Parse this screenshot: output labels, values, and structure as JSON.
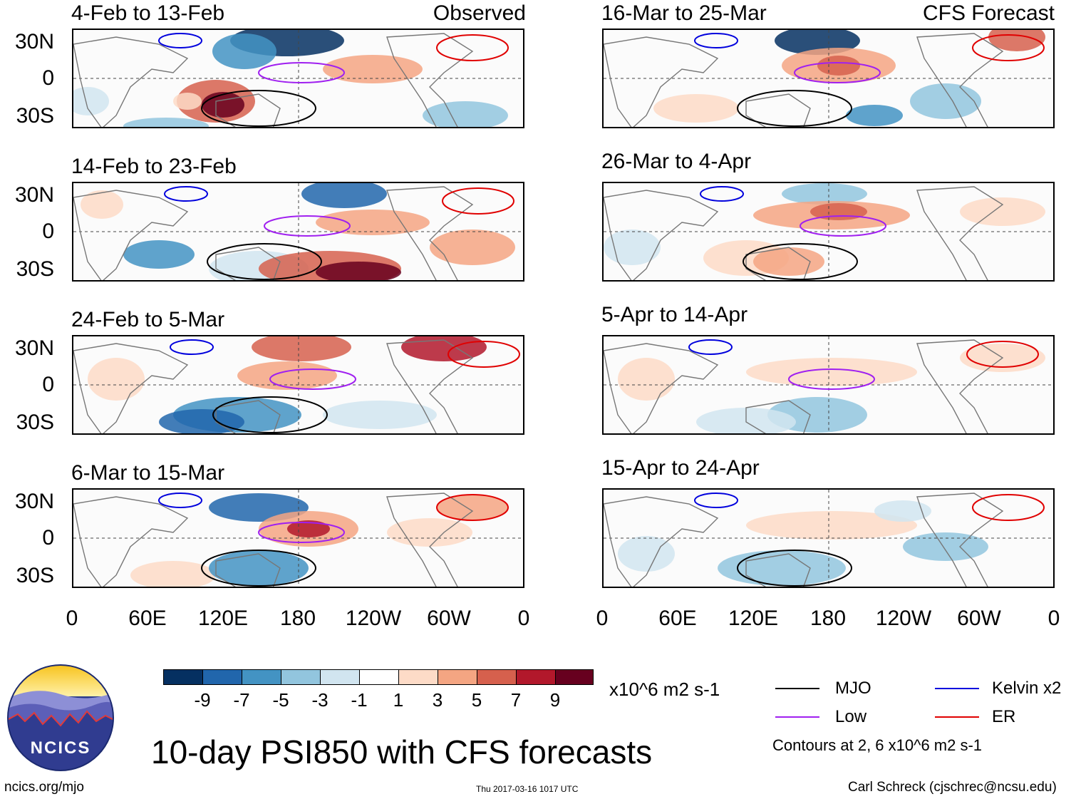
{
  "header": {
    "observed_label": "Observed",
    "forecast_label": "CFS Forecast"
  },
  "panels": [
    {
      "title": "4-Feb to 13-Feb"
    },
    {
      "title": "14-Feb to 23-Feb"
    },
    {
      "title": "24-Feb to 5-Mar"
    },
    {
      "title": "6-Mar to 15-Mar"
    },
    {
      "title": "16-Mar to 25-Mar"
    },
    {
      "title": "26-Mar to 4-Apr"
    },
    {
      "title": "5-Apr to 14-Apr"
    },
    {
      "title": "15-Apr to 24-Apr"
    }
  ],
  "lat_labels": [
    "30N",
    "0",
    "30S"
  ],
  "lon_labels": [
    "0",
    "60E",
    "120E",
    "180",
    "120W",
    "60W",
    "0"
  ],
  "colorbar": {
    "units": "x10^6 m2 s-1",
    "ticks": [
      "-9",
      "-7",
      "-5",
      "-3",
      "-1",
      "1",
      "3",
      "5",
      "7",
      "9"
    ],
    "colors": [
      "#053061",
      "#2166ac",
      "#4393c3",
      "#92c5de",
      "#d1e5f0",
      "#ffffff",
      "#fddbc7",
      "#f4a582",
      "#d6604d",
      "#b2182b",
      "#67001f"
    ]
  },
  "legend": {
    "items": [
      {
        "label": "MJO",
        "color": "#000000"
      },
      {
        "label": "Kelvin x2",
        "color": "#0000dd"
      },
      {
        "label": "Low",
        "color": "#a020f0"
      },
      {
        "label": "ER",
        "color": "#e00000"
      }
    ],
    "note": "Contours at 2, 6 x10^6 m2 s-1"
  },
  "footer": {
    "main_title": "10-day PSI850 with CFS forecasts",
    "logo_text": "NCICS",
    "url": "ncics.org/mjo",
    "timestamp": "Thu 2017-03-16 1017 UTC",
    "credit": "Carl Schreck (cjschrec@ncsu.edu)"
  }
}
